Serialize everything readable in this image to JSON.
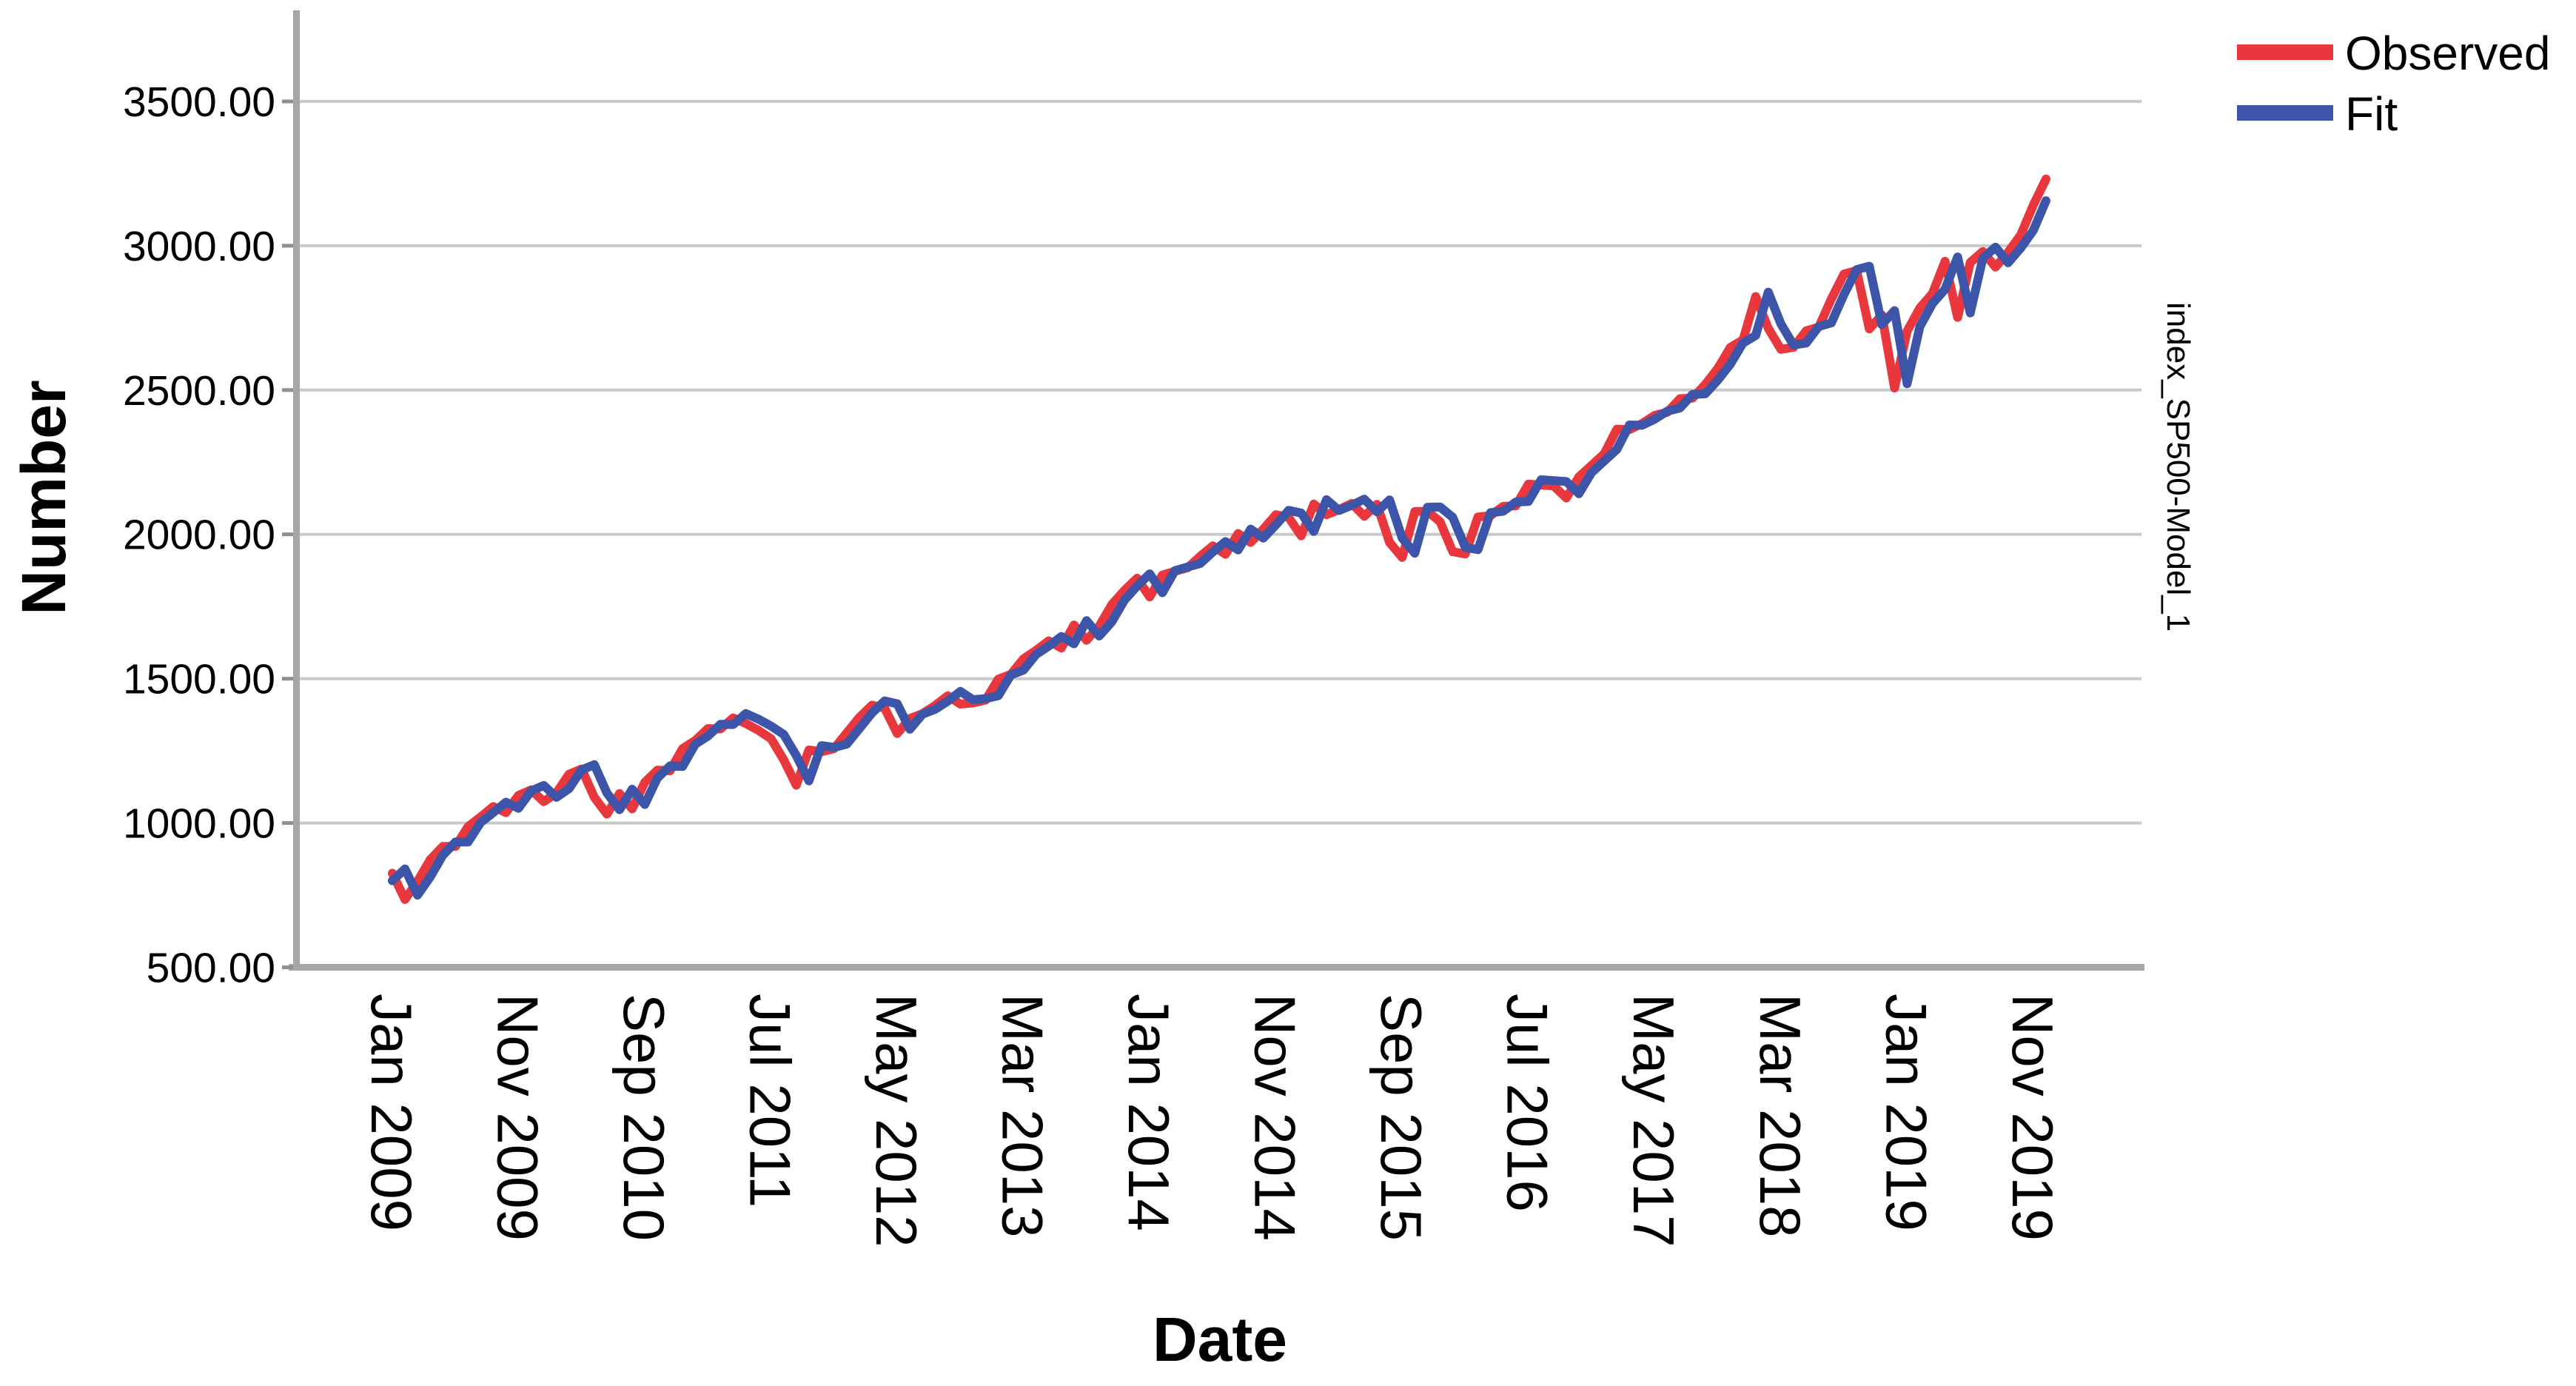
{
  "figure": {
    "y_axis": {
      "title": "Number",
      "tick_labels": [
        "3500.00",
        "3000.00",
        "2500.00",
        "2000.00",
        "1500.00",
        "1000.00",
        "500.00"
      ],
      "tick_values": [
        3500,
        3000,
        2500,
        2000,
        1500,
        1000,
        500
      ],
      "gridline_values": [
        3500,
        3000,
        2500,
        2000,
        1500,
        1000
      ]
    },
    "x_axis": {
      "title": "Date",
      "tick_labels": [
        "Jan 2009",
        "Nov 2009",
        "Sep 2010",
        "Jul 2011",
        "May 2012",
        "Mar 2013",
        "Jan 2014",
        "Nov 2014",
        "Sep 2015",
        "Jul 2016",
        "May 2017",
        "Mar 2018",
        "Jan 2019",
        "Nov 2019"
      ],
      "tick_month_indices": [
        0,
        10,
        20,
        30,
        40,
        50,
        60,
        70,
        80,
        90,
        100,
        110,
        120,
        130
      ]
    },
    "right_panel_label": "index_SP500-Model_1",
    "legend": {
      "position": "top-right",
      "items": [
        {
          "label": "Observed",
          "color": "#e8373d"
        },
        {
          "label": "Fit",
          "color": "#3c55a8"
        }
      ]
    },
    "colors": {
      "gridline": "#c9c9c9",
      "axis_frame": "#a6a6a6",
      "tick_mark": "#8f8f8f",
      "background": "#ffffff"
    }
  },
  "chart_data": {
    "type": "line",
    "title": "",
    "xlabel": "Date",
    "ylabel": "Number",
    "x_unit": "month",
    "x_range": [
      "Jan 2009",
      "Dec 2019"
    ],
    "n_points": 132,
    "ylim": [
      500,
      3800
    ],
    "ytick_step": 500,
    "grid": "horizontal",
    "legend_position": "top-right",
    "series": [
      {
        "name": "Observed",
        "color": "#e8373d",
        "values": [
          826,
          735,
          798,
          873,
          919,
          919,
          987,
          1021,
          1057,
          1036,
          1096,
          1115,
          1074,
          1104,
          1169,
          1187,
          1089,
          1031,
          1102,
          1049,
          1141,
          1183,
          1181,
          1258,
          1286,
          1327,
          1326,
          1364,
          1345,
          1321,
          1292,
          1219,
          1131,
          1253,
          1247,
          1258,
          1312,
          1366,
          1408,
          1398,
          1310,
          1362,
          1379,
          1407,
          1441,
          1412,
          1416,
          1426,
          1498,
          1515,
          1569,
          1598,
          1631,
          1606,
          1686,
          1633,
          1682,
          1757,
          1806,
          1848,
          1783,
          1859,
          1872,
          1884,
          1924,
          1960,
          1931,
          2003,
          1972,
          2018,
          2068,
          2059,
          1995,
          2105,
          2068,
          2086,
          2107,
          2063,
          2104,
          1972,
          1920,
          2079,
          2080,
          2044,
          1940,
          1932,
          2060,
          2065,
          2097,
          2099,
          2174,
          2171,
          2168,
          2126,
          2199,
          2239,
          2279,
          2364,
          2363,
          2384,
          2412,
          2423,
          2470,
          2472,
          2519,
          2575,
          2648,
          2674,
          2824,
          2714,
          2641,
          2648,
          2705,
          2718,
          2816,
          2902,
          2914,
          2712,
          2760,
          2507,
          2704,
          2784,
          2834,
          2946,
          2752,
          2942,
          2980,
          2926,
          2977,
          3038,
          3141,
          3231
        ]
      },
      {
        "name": "Fit",
        "color": "#3c55a8",
        "values": [
          800,
          841,
          750,
          813,
          888,
          934,
          934,
          1002,
          1036,
          1072,
          1051,
          1111,
          1130,
          1089,
          1119,
          1184,
          1202,
          1104,
          1046,
          1117,
          1064,
          1156,
          1198,
          1196,
          1273,
          1301,
          1342,
          1341,
          1379,
          1360,
          1336,
          1307,
          1234,
          1146,
          1268,
          1262,
          1273,
          1327,
          1381,
          1423,
          1413,
          1325,
          1377,
          1394,
          1422,
          1456,
          1427,
          1431,
          1441,
          1513,
          1530,
          1584,
          1613,
          1646,
          1621,
          1701,
          1648,
          1697,
          1772,
          1821,
          1863,
          1798,
          1874,
          1887,
          1899,
          1939,
          1975,
          1946,
          2018,
          1987,
          2033,
          2083,
          2074,
          2010,
          2120,
          2083,
          2101,
          2122,
          2078,
          2119,
          1987,
          1935,
          2094,
          2095,
          2059,
          1955,
          1947,
          2075,
          2080,
          2112,
          2114,
          2189,
          2186,
          2183,
          2141,
          2214,
          2254,
          2294,
          2379,
          2378,
          2399,
          2427,
          2438,
          2485,
          2487,
          2534,
          2590,
          2663,
          2689,
          2839,
          2729,
          2656,
          2663,
          2720,
          2733,
          2831,
          2917,
          2929,
          2727,
          2775,
          2522,
          2719,
          2799,
          2849,
          2961,
          2767,
          2957,
          2995,
          2941,
          2992,
          3053,
          3156
        ]
      }
    ]
  }
}
